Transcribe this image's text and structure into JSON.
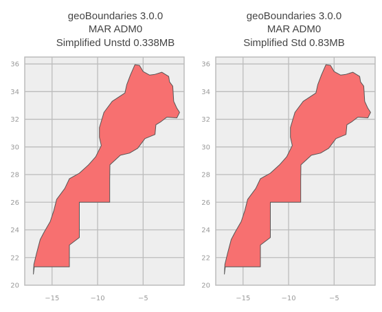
{
  "maps": [
    {
      "title_lines": [
        "geoBoundaries 3.0.0",
        "MAR ADM0",
        "Simplified Unstd 0.338MB"
      ],
      "xlim": [
        -18,
        -0.5
      ],
      "ylim": [
        20,
        36.5
      ],
      "xticks": [
        -15,
        -10,
        -5
      ],
      "yticks": [
        20,
        22,
        24,
        26,
        28,
        30,
        32,
        34,
        36
      ]
    },
    {
      "title_lines": [
        "geoBoundaries 3.0.0",
        "MAR ADM0",
        "Simplified Std 0.83MB"
      ],
      "xlim": [
        -18,
        -0.5
      ],
      "ylim": [
        20,
        36.5
      ],
      "xticks": [
        -15,
        -10,
        -5
      ],
      "yticks": [
        20,
        22,
        24,
        26,
        28,
        30,
        32,
        34,
        36
      ]
    }
  ],
  "outline_lonlat": [
    [
      -5.9,
      35.95
    ],
    [
      -5.4,
      35.9
    ],
    [
      -5.0,
      35.45
    ],
    [
      -4.3,
      35.2
    ],
    [
      -3.7,
      35.25
    ],
    [
      -2.95,
      35.4
    ],
    [
      -2.2,
      35.1
    ],
    [
      -2.1,
      34.7
    ],
    [
      -1.75,
      34.4
    ],
    [
      -1.7,
      33.9
    ],
    [
      -1.65,
      33.3
    ],
    [
      -1.3,
      32.8
    ],
    [
      -1.0,
      32.5
    ],
    [
      -1.3,
      32.1
    ],
    [
      -2.4,
      32.15
    ],
    [
      -3.1,
      31.8
    ],
    [
      -3.6,
      31.6
    ],
    [
      -3.7,
      30.9
    ],
    [
      -4.8,
      30.6
    ],
    [
      -5.6,
      29.9
    ],
    [
      -6.5,
      29.55
    ],
    [
      -7.5,
      29.4
    ],
    [
      -8.65,
      28.7
    ],
    [
      -8.67,
      27.67
    ],
    [
      -8.67,
      26.0
    ],
    [
      -12.0,
      26.0
    ],
    [
      -12.0,
      23.45
    ],
    [
      -13.1,
      22.9
    ],
    [
      -13.1,
      21.33
    ],
    [
      -16.95,
      21.33
    ],
    [
      -17.05,
      20.8
    ],
    [
      -17.0,
      21.5
    ],
    [
      -16.7,
      22.3
    ],
    [
      -16.3,
      23.3
    ],
    [
      -15.9,
      23.8
    ],
    [
      -15.2,
      24.6
    ],
    [
      -14.8,
      25.4
    ],
    [
      -14.5,
      26.2
    ],
    [
      -13.6,
      27.0
    ],
    [
      -13.1,
      27.7
    ],
    [
      -12.0,
      28.1
    ],
    [
      -11.0,
      28.7
    ],
    [
      -10.2,
      29.3
    ],
    [
      -9.6,
      30.1
    ],
    [
      -9.8,
      30.7
    ],
    [
      -9.8,
      31.4
    ],
    [
      -9.3,
      32.5
    ],
    [
      -8.4,
      33.3
    ],
    [
      -7.0,
      33.9
    ],
    [
      -6.8,
      34.5
    ],
    [
      -6.4,
      35.2
    ],
    [
      -5.9,
      35.95
    ]
  ]
}
